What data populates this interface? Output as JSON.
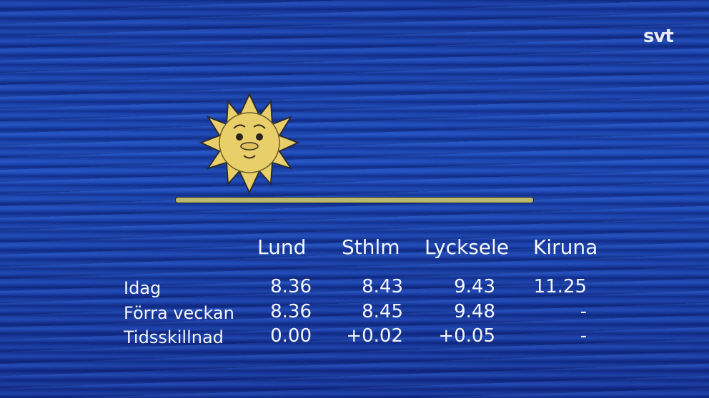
{
  "logo": "svt",
  "table": {
    "columns": [
      "Lund",
      "Sthlm",
      "Lycksele",
      "Kiruna"
    ],
    "rows": [
      {
        "label": "Idag",
        "values": [
          "8.36",
          "8.43",
          "9.43",
          "11.25"
        ]
      },
      {
        "label": "Förra veckan",
        "values": [
          "8.36",
          "8.45",
          "9.48",
          "-"
        ]
      },
      {
        "label": "Tidsskillnad",
        "values": [
          "0.00",
          "+0.02",
          "+0.05",
          "-"
        ]
      }
    ]
  },
  "colors": {
    "background": "#1d4ab8",
    "sun": "#e8cf6a",
    "horizon": "#b9b86c",
    "text": "#f4f6fb"
  }
}
